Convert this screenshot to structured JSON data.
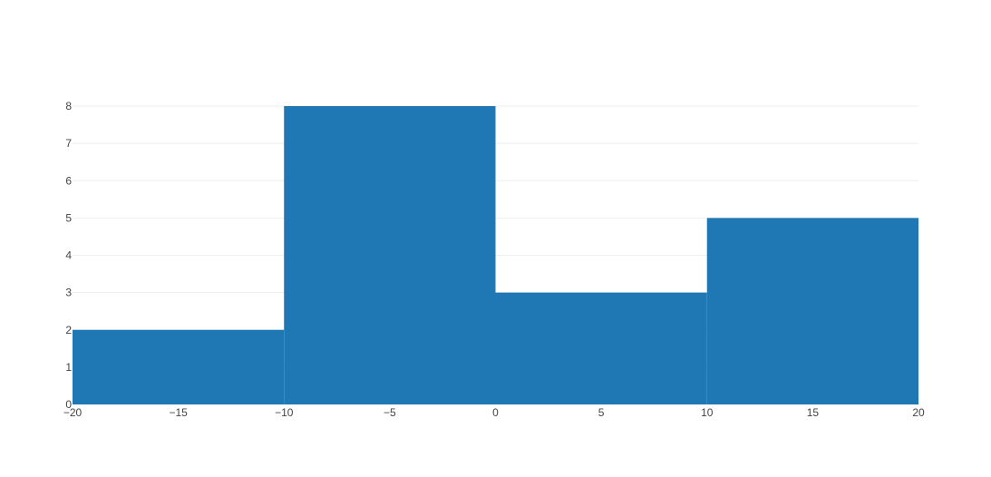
{
  "chart_data": {
    "type": "bar",
    "subtype": "histogram",
    "bins": [
      {
        "x0": -20,
        "x1": -10,
        "count": 2
      },
      {
        "x0": -10,
        "x1": 0,
        "count": 8
      },
      {
        "x0": 0,
        "x1": 10,
        "count": 3
      },
      {
        "x0": 10,
        "x1": 20,
        "count": 5
      }
    ],
    "xlim": [
      -20,
      20
    ],
    "ylim": [
      0,
      8
    ],
    "xticks": [
      -20,
      -15,
      -10,
      -5,
      0,
      5,
      10,
      15,
      20
    ],
    "xtick_labels": [
      "−20",
      "−15",
      "−10",
      "−5",
      "0",
      "5",
      "10",
      "15",
      "20"
    ],
    "yticks": [
      0,
      1,
      2,
      3,
      4,
      5,
      6,
      7,
      8
    ],
    "ytick_labels": [
      "0",
      "1",
      "2",
      "3",
      "4",
      "5",
      "6",
      "7",
      "8"
    ],
    "grid": {
      "x": false,
      "y": true
    },
    "legend": "none",
    "bar_color": "#1f77b4",
    "grid_color": "#eeeeee",
    "tick_color": "#444444"
  }
}
